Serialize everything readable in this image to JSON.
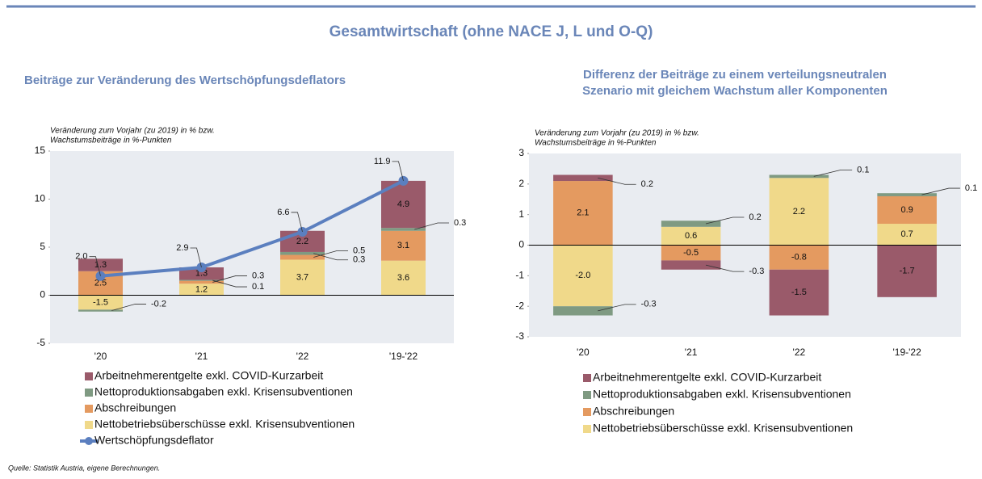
{
  "title": "Gesamtwirtschaft (ohne NACE J, L und O-Q)",
  "source": "Quelle: Statistik Austria, eigene Berechnungen.",
  "chart_data": [
    {
      "type": "bar",
      "stacked": true,
      "title_lines": [
        "Beiträge zur Veränderung des Wertschöpfungsdeflators"
      ],
      "ylabel_lines": [
        "Veränderung zum Vorjahr (zu 2019) in % bzw.",
        "Wachstumsbeiträge in %-Punkten"
      ],
      "categories": [
        "'20",
        "'21",
        "'22",
        "'19-'22"
      ],
      "ylim": [
        -5,
        15
      ],
      "yticks": [
        -5,
        0,
        5,
        10,
        15
      ],
      "series": [
        {
          "name": "Arbeitnehmerentgelte exkl. COVID-Kurzarbeit",
          "color": "#9a5a6a",
          "values": [
            1.3,
            1.3,
            2.2,
            4.9
          ],
          "value_labels": [
            "1.3",
            "1.3",
            "2.2",
            "4.9"
          ]
        },
        {
          "name": "Nettoproduktionsabgaben exkl. Krisensubventionen",
          "color": "#7f9a82",
          "values": [
            -0.2,
            0.1,
            0.3,
            0.3
          ],
          "value_labels": [
            "-0.2",
            "0.1",
            "0.3",
            "0.3"
          ]
        },
        {
          "name": "Abschreibungen",
          "color": "#e49a60",
          "values": [
            2.5,
            0.3,
            0.5,
            3.1
          ],
          "value_labels": [
            "2.5",
            "0.3",
            "0.5",
            "3.1"
          ]
        },
        {
          "name": "Nettobetriebsüberschüsse exkl. Krisensubventionen",
          "color": "#f0d98a",
          "values": [
            -1.5,
            1.2,
            3.7,
            3.6
          ],
          "value_labels": [
            "-1.5",
            "1.2",
            "3.7",
            "3.6"
          ]
        },
        {
          "name": "Wertschöpfungsdeflator",
          "type": "line",
          "color": "#5b7fbf",
          "values": [
            2.0,
            2.9,
            6.6,
            11.9
          ],
          "value_labels": [
            "2.0",
            "2.9",
            "6.6",
            "11.9"
          ]
        }
      ]
    },
    {
      "type": "bar",
      "stacked": true,
      "title_lines": [
        "Differenz der Beiträge zu einem verteilungsneutralen",
        "Szenario mit gleichem Wachstum aller Komponenten"
      ],
      "ylabel_lines": [
        "Veränderung zum Vorjahr (zu 2019) in % bzw.",
        "Wachstumsbeiträge in %-Punkten"
      ],
      "categories": [
        "'20",
        "'21",
        "'22",
        "'19-'22"
      ],
      "ylim": [
        -3,
        3
      ],
      "yticks": [
        -3,
        -2,
        -1,
        0,
        1,
        2,
        3
      ],
      "series": [
        {
          "name": "Arbeitnehmerentgelte exkl. COVID-Kurzarbeit",
          "color": "#9a5a6a",
          "values": [
            0.2,
            -0.3,
            -1.5,
            -1.7
          ],
          "value_labels": [
            "0.2",
            "-0.3",
            "-1.5",
            "-1.7"
          ]
        },
        {
          "name": "Nettoproduktionsabgaben exkl. Krisensubventionen",
          "color": "#7f9a82",
          "values": [
            -0.3,
            0.2,
            0.1,
            0.1
          ],
          "value_labels": [
            "-0.3",
            "0.2",
            "0.1",
            "0.1"
          ]
        },
        {
          "name": "Abschreibungen",
          "color": "#e49a60",
          "values": [
            2.1,
            -0.5,
            -0.8,
            0.9
          ],
          "value_labels": [
            "2.1",
            "-0.5",
            "-0.8",
            "0.9"
          ]
        },
        {
          "name": "Nettobetriebsüberschüsse exkl. Krisensubventionen",
          "color": "#f0d98a",
          "values": [
            -2.0,
            0.6,
            2.2,
            0.7
          ],
          "value_labels": [
            "-2.0",
            "0.6",
            "2.2",
            "0.7"
          ]
        }
      ]
    }
  ]
}
